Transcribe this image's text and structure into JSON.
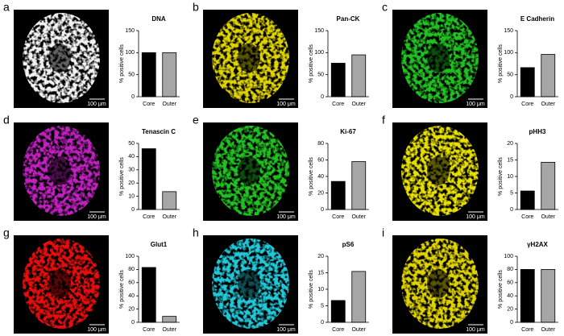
{
  "chart_data": [
    {
      "type": "bar",
      "panel": "a",
      "title": "DNA",
      "scale_bar": "100 μm",
      "ylabel": "% positive cells",
      "categories": [
        "Core",
        "Outer"
      ],
      "values": [
        100,
        100
      ],
      "colors": [
        "#000000",
        "#a6a6a6"
      ],
      "ylim": [
        0,
        150
      ],
      "yticks": [
        0,
        50,
        100,
        150
      ]
    },
    {
      "type": "bar",
      "panel": "b",
      "title": "Pan-CK",
      "scale_bar": "100 μm",
      "ylabel": "% positive cells",
      "categories": [
        "Core",
        "Outer"
      ],
      "values": [
        76,
        95
      ],
      "colors": [
        "#000000",
        "#a6a6a6"
      ],
      "ylim": [
        0,
        150
      ],
      "yticks": [
        0,
        50,
        100,
        150
      ]
    },
    {
      "type": "bar",
      "panel": "c",
      "title": "E Cadherin",
      "scale_bar": "100 μm",
      "ylabel": "% positive cells",
      "categories": [
        "Core",
        "Outer"
      ],
      "values": [
        66,
        96
      ],
      "colors": [
        "#000000",
        "#a6a6a6"
      ],
      "ylim": [
        0,
        150
      ],
      "yticks": [
        0,
        50,
        100,
        150
      ]
    },
    {
      "type": "bar",
      "panel": "d",
      "title": "Tenascin C",
      "scale_bar": "100 μm",
      "ylabel": "% positive cells",
      "categories": [
        "Core",
        "Outer"
      ],
      "values": [
        46,
        13.5
      ],
      "colors": [
        "#000000",
        "#a6a6a6"
      ],
      "ylim": [
        0,
        50
      ],
      "yticks": [
        0,
        10,
        20,
        30,
        40,
        50
      ]
    },
    {
      "type": "bar",
      "panel": "e",
      "title": "Ki-67",
      "scale_bar": "100 μm",
      "ylabel": "% positive cells",
      "categories": [
        "Core",
        "Outer"
      ],
      "values": [
        34,
        58
      ],
      "colors": [
        "#000000",
        "#a6a6a6"
      ],
      "ylim": [
        0,
        80
      ],
      "yticks": [
        0,
        20,
        40,
        60,
        80
      ]
    },
    {
      "type": "bar",
      "panel": "f",
      "title": "pHH3",
      "scale_bar": "100 μm",
      "ylabel": "% positive cells",
      "categories": [
        "Core",
        "Outer"
      ],
      "values": [
        5.6,
        14.3
      ],
      "colors": [
        "#000000",
        "#a6a6a6"
      ],
      "ylim": [
        0,
        20
      ],
      "yticks": [
        0,
        5,
        10,
        15,
        20
      ]
    },
    {
      "type": "bar",
      "panel": "g",
      "title": "Glut1",
      "scale_bar": "100 μm",
      "ylabel": "% positive cells",
      "categories": [
        "Core",
        "Outer"
      ],
      "values": [
        83,
        9
      ],
      "colors": [
        "#000000",
        "#a6a6a6"
      ],
      "ylim": [
        0,
        100
      ],
      "yticks": [
        0,
        20,
        40,
        60,
        80,
        100
      ]
    },
    {
      "type": "bar",
      "panel": "h",
      "title": "pS6",
      "scale_bar": "100 μm",
      "ylabel": "% positive cells",
      "categories": [
        "Core",
        "Outer"
      ],
      "values": [
        6.6,
        15.4
      ],
      "colors": [
        "#000000",
        "#a6a6a6"
      ],
      "ylim": [
        0,
        20
      ],
      "yticks": [
        0,
        5,
        10,
        15,
        20
      ]
    },
    {
      "type": "bar",
      "panel": "i",
      "title": "γH2AX",
      "scale_bar": "100 μm",
      "ylabel": "% positive cells",
      "categories": [
        "Core",
        "Outer"
      ],
      "values": [
        80,
        80
      ],
      "colors": [
        "#000000",
        "#a6a6a6"
      ],
      "ylim": [
        0,
        100
      ],
      "yticks": [
        0,
        20,
        40,
        60,
        80,
        100
      ]
    }
  ]
}
